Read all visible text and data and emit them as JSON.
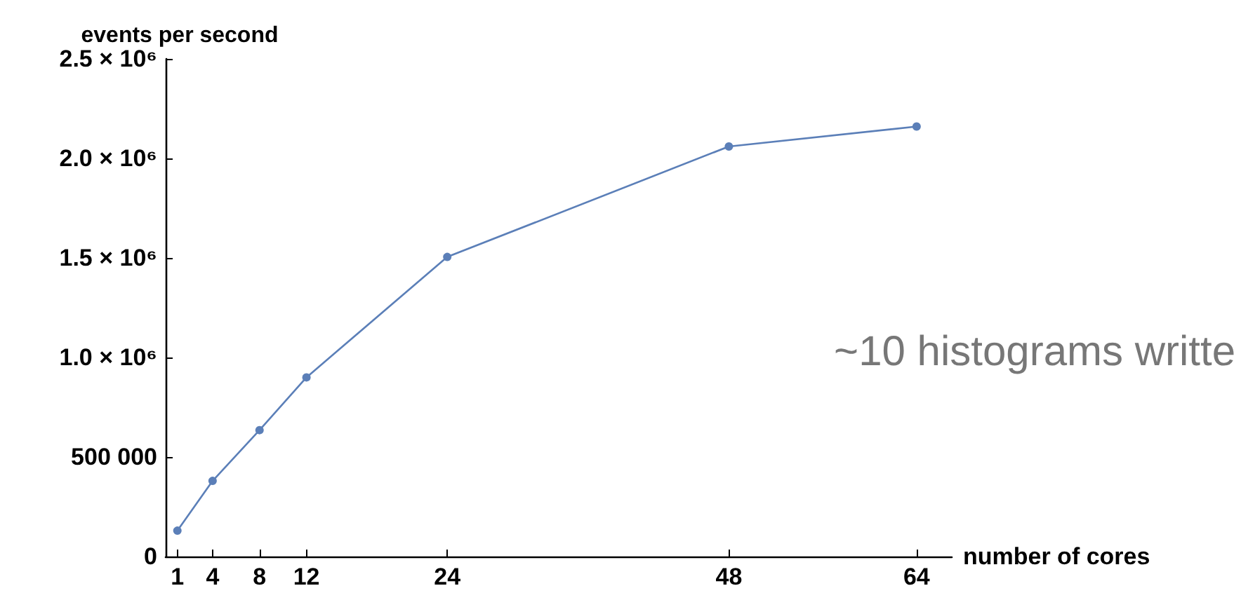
{
  "chart_data": {
    "type": "line",
    "xlabel": "number of cores",
    "ylabel": "events per second",
    "x": [
      1,
      4,
      8,
      12,
      24,
      48,
      64
    ],
    "series": [
      {
        "color": "#5b7fb8",
        "values": [
          130000,
          380000,
          635000,
          900000,
          1505000,
          2060000,
          2160000
        ]
      }
    ],
    "xlim": [
      0,
      67
    ],
    "xticks": [
      1,
      4,
      8,
      12,
      24,
      48,
      64
    ],
    "ylim": [
      0,
      2500000
    ],
    "yticks": [
      0,
      {
        "value": 500000,
        "label": "500 000"
      },
      {
        "value": 1000000,
        "label": "1.0 × 10⁶"
      },
      {
        "value": 1500000,
        "label": "1.5 × 10⁶"
      },
      {
        "value": 2000000,
        "label": "2.0 × 10⁶"
      },
      {
        "value": 2500000,
        "label": "2.5 × 10⁶"
      }
    ],
    "grid": false,
    "marker": "circle",
    "line_style": "solid",
    "annotations": [
      "~10 histograms writte"
    ]
  }
}
